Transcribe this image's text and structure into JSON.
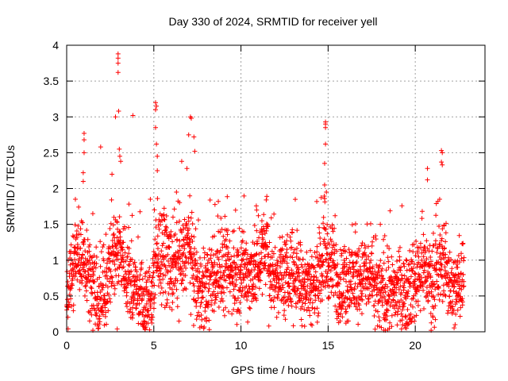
{
  "chart_data": {
    "type": "scatter",
    "title": "Day 330 of 2024, SRMTID for receiver yell",
    "xlabel": "GPS time / hours",
    "ylabel": "SRMTID / TECUs",
    "xlim": [
      0,
      24
    ],
    "ylim": [
      0,
      4
    ],
    "x_ticks": [
      0,
      5,
      10,
      15,
      20
    ],
    "x_tick_labels": [
      "0",
      "5",
      "10",
      "15",
      "20"
    ],
    "y_ticks": [
      0,
      0.5,
      1,
      1.5,
      2,
      2.5,
      3,
      3.5,
      4
    ],
    "y_tick_labels": [
      "0",
      "0.5",
      "1",
      "1.5",
      "2",
      "2.5",
      "3",
      "3.5",
      "4"
    ],
    "grid": true,
    "marker": "+",
    "series": [
      {
        "name": "SRMTID",
        "color": "#ff0000",
        "trend": [
          [
            0.0,
            0.55
          ],
          [
            0.3,
            0.85
          ],
          [
            0.6,
            1.05
          ],
          [
            0.9,
            1.1
          ],
          [
            1.2,
            0.95
          ],
          [
            1.5,
            0.65
          ],
          [
            1.8,
            0.35
          ],
          [
            2.1,
            0.55
          ],
          [
            2.4,
            0.8
          ],
          [
            2.7,
            1.05
          ],
          [
            3.0,
            1.2
          ],
          [
            3.3,
            0.95
          ],
          [
            3.6,
            0.7
          ],
          [
            3.9,
            0.6
          ],
          [
            4.2,
            0.55
          ],
          [
            4.5,
            0.35
          ],
          [
            4.8,
            0.45
          ],
          [
            5.1,
            0.95
          ],
          [
            5.4,
            1.1
          ],
          [
            5.7,
            1.05
          ],
          [
            6.0,
            0.85
          ],
          [
            6.3,
            0.9
          ],
          [
            6.6,
            0.95
          ],
          [
            6.9,
            1.25
          ],
          [
            7.2,
            0.95
          ],
          [
            7.5,
            0.6
          ],
          [
            7.8,
            0.55
          ],
          [
            8.1,
            0.65
          ],
          [
            8.4,
            0.75
          ],
          [
            8.7,
            0.85
          ],
          [
            9.0,
            0.85
          ],
          [
            9.3,
            0.8
          ],
          [
            9.6,
            0.8
          ],
          [
            9.9,
            0.75
          ],
          [
            10.2,
            0.85
          ],
          [
            10.5,
            0.8
          ],
          [
            10.8,
            0.85
          ],
          [
            11.1,
            1.0
          ],
          [
            11.4,
            1.15
          ],
          [
            11.7,
            0.8
          ],
          [
            12.0,
            0.75
          ],
          [
            12.3,
            0.8
          ],
          [
            12.6,
            0.75
          ],
          [
            12.9,
            0.8
          ],
          [
            13.2,
            0.85
          ],
          [
            13.5,
            0.7
          ],
          [
            13.8,
            0.75
          ],
          [
            14.1,
            0.6
          ],
          [
            14.4,
            0.75
          ],
          [
            14.7,
            1.05
          ],
          [
            15.0,
            1.0
          ],
          [
            15.3,
            0.9
          ],
          [
            15.6,
            0.65
          ],
          [
            15.9,
            0.6
          ],
          [
            16.2,
            0.75
          ],
          [
            16.5,
            0.7
          ],
          [
            16.8,
            0.75
          ],
          [
            17.1,
            0.8
          ],
          [
            17.4,
            0.75
          ],
          [
            17.7,
            0.6
          ],
          [
            18.0,
            0.5
          ],
          [
            18.3,
            0.5
          ],
          [
            18.6,
            0.55
          ],
          [
            18.9,
            0.6
          ],
          [
            19.2,
            0.55
          ],
          [
            19.5,
            0.6
          ],
          [
            19.8,
            0.6
          ],
          [
            20.1,
            0.8
          ],
          [
            20.4,
            0.95
          ],
          [
            20.7,
            0.8
          ],
          [
            21.0,
            0.65
          ],
          [
            21.3,
            0.85
          ],
          [
            21.6,
            1.0
          ],
          [
            21.9,
            0.75
          ],
          [
            22.2,
            0.55
          ],
          [
            22.5,
            0.65
          ],
          [
            22.8,
            0.85
          ]
        ],
        "spikes": [
          [
            2.95,
            3.88
          ],
          [
            2.95,
            3.82
          ],
          [
            2.95,
            3.75
          ],
          [
            2.95,
            3.62
          ],
          [
            2.98,
            3.08
          ],
          [
            3.02,
            2.55
          ],
          [
            3.05,
            2.45
          ],
          [
            3.1,
            2.38
          ],
          [
            2.8,
            3.0
          ],
          [
            3.8,
            3.02
          ],
          [
            1.0,
            2.77
          ],
          [
            1.0,
            2.68
          ],
          [
            1.0,
            2.5
          ],
          [
            0.95,
            2.22
          ],
          [
            0.95,
            2.1
          ],
          [
            1.95,
            2.58
          ],
          [
            2.6,
            2.2
          ],
          [
            5.1,
            3.2
          ],
          [
            5.15,
            3.15
          ],
          [
            5.1,
            3.1
          ],
          [
            5.1,
            2.85
          ],
          [
            5.15,
            2.62
          ],
          [
            5.2,
            2.45
          ],
          [
            5.2,
            2.25
          ],
          [
            4.8,
            1.85
          ],
          [
            7.1,
            3.0
          ],
          [
            7.15,
            2.98
          ],
          [
            7.0,
            2.75
          ],
          [
            7.3,
            2.72
          ],
          [
            7.35,
            2.52
          ],
          [
            6.6,
            2.38
          ],
          [
            6.9,
            2.28
          ],
          [
            14.85,
            2.93
          ],
          [
            14.85,
            2.9
          ],
          [
            14.85,
            2.85
          ],
          [
            14.85,
            2.62
          ],
          [
            14.8,
            2.35
          ],
          [
            14.8,
            2.05
          ],
          [
            14.9,
            1.95
          ],
          [
            15.4,
            1.62
          ],
          [
            20.7,
            2.28
          ],
          [
            20.7,
            2.12
          ],
          [
            21.5,
            2.53
          ],
          [
            21.55,
            2.5
          ],
          [
            21.5,
            2.37
          ],
          [
            21.55,
            2.33
          ],
          [
            21.4,
            1.85
          ],
          [
            10.9,
            1.7
          ],
          [
            11.2,
            1.55
          ],
          [
            11.0,
            1.62
          ],
          [
            8.7,
            1.82
          ],
          [
            6.3,
            1.95
          ],
          [
            6.1,
            1.6
          ],
          [
            1.5,
            1.65
          ],
          [
            0.5,
            1.85
          ],
          [
            2.9,
            0.04
          ],
          [
            1.8,
            0.08
          ],
          [
            4.5,
            0.03
          ],
          [
            11.6,
            0.08
          ]
        ]
      }
    ]
  }
}
